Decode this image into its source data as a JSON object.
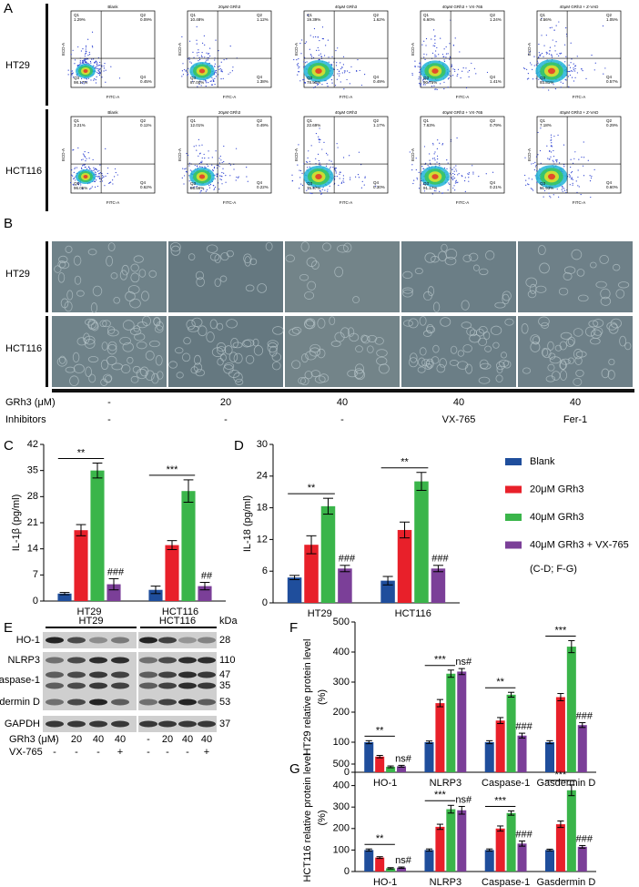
{
  "panel_labels": [
    "A",
    "B",
    "C",
    "D",
    "E",
    "F",
    "G"
  ],
  "flow": {
    "x_axis": "FITC-A",
    "y_axis": "ECD-A",
    "quadrants": [
      "Q1",
      "Q2",
      "Q3",
      "Q4"
    ],
    "rows": [
      {
        "label": "HT29",
        "plots": [
          {
            "title": "Blank",
            "q1": "1.29%",
            "q2": "0.09%",
            "q3": "98.17%",
            "q4": "0.45%"
          },
          {
            "title": "20μM GRh3",
            "q1": "10.48%",
            "q2": "1.12%",
            "q3": "87.00%",
            "q4": "1.38%"
          },
          {
            "title": "40μM GRh3",
            "q1": "19.39%",
            "q2": "1.62%",
            "q3": "78.50%",
            "q4": "0.49%"
          },
          {
            "title": "40μM GRh3 + VX-765",
            "q1": "6.60%",
            "q2": "1.24%",
            "q3": "90.75%",
            "q4": "1.41%"
          },
          {
            "title": "40μM GRh3 + Z-VAD",
            "q1": "4.56%",
            "q2": "1.05%",
            "q3": "93.81%",
            "q4": "0.57%"
          }
        ]
      },
      {
        "label": "HCT116",
        "plots": [
          {
            "title": "Blank",
            "q1": "3.21%",
            "q2": "0.11%",
            "q3": "96.05%",
            "q4": "0.62%"
          },
          {
            "title": "20μM GRh3",
            "q1": "12.01%",
            "q2": "0.49%",
            "q3": "86.56%",
            "q4": "0.22%"
          },
          {
            "title": "40μM GRh3",
            "q1": "22.69%",
            "q2": "1.17%",
            "q3": "75.97%",
            "q4": "0.30%"
          },
          {
            "title": "40μM GRh3 + VX-765",
            "q1": "7.63%",
            "q2": "0.79%",
            "q3": "91.17%",
            "q4": "0.21%"
          },
          {
            "title": "40μM GRh3 + Z-VAD",
            "q1": "7.18%",
            "q2": "0.29%",
            "q3": "91.93%",
            "q4": "0.60%"
          }
        ]
      }
    ]
  },
  "microscopy": {
    "rows": [
      "HT29",
      "HCT116"
    ]
  },
  "treatments": {
    "rows": [
      {
        "label": "GRh3 (μM)",
        "values": [
          "-",
          "20",
          "40",
          "40",
          "40"
        ]
      },
      {
        "label": "Inhibitors",
        "values": [
          "-",
          "-",
          "-",
          "VX-765",
          "Fer-1"
        ]
      }
    ]
  },
  "blot": {
    "cell_lines": [
      "HT29",
      "HCT116"
    ],
    "unit": "kDa",
    "rows": [
      {
        "name": "HO-1",
        "kda": [
          "28"
        ]
      },
      {
        "name": "NLRP3",
        "kda": [
          "110"
        ]
      },
      {
        "name": "Caspase-1",
        "kda": [
          "47",
          "35"
        ]
      },
      {
        "name": "Gasdermin D",
        "kda": [
          "53"
        ]
      },
      {
        "name": "GAPDH",
        "kda": [
          "37"
        ]
      }
    ],
    "conditions": [
      {
        "label": "GRh3 (μM)",
        "values": [
          "-",
          "20",
          "40",
          "40",
          "-",
          "20",
          "40",
          "40"
        ]
      },
      {
        "label": "VX-765",
        "values": [
          "-",
          "-",
          "-",
          "+",
          "-",
          "-",
          "-",
          "+"
        ]
      }
    ]
  },
  "chart_data": [
    {
      "type": "bar",
      "y_label": [
        "IL-1β (pg/ml)"
      ],
      "categories": [
        "HT29",
        "HCT116"
      ],
      "ylim": [
        0,
        42
      ],
      "yticks": [
        0,
        7,
        14,
        21,
        28,
        35,
        42
      ],
      "comparisons": [
        "**",
        "***"
      ],
      "series": [
        {
          "name": "Blank",
          "color": "#1f4e9c",
          "values": [
            2,
            3
          ],
          "errors": [
            0.3,
            1
          ],
          "annotations": [
            null,
            null
          ]
        },
        {
          "name": "20μM GRh3",
          "color": "#e8202a",
          "values": [
            19,
            15
          ],
          "errors": [
            1.5,
            1.2
          ],
          "annotations": [
            null,
            null
          ]
        },
        {
          "name": "40μM GRh3",
          "color": "#3ab54a",
          "values": [
            35,
            29.5
          ],
          "errors": [
            2,
            3
          ],
          "annotations": [
            null,
            null
          ]
        },
        {
          "name": "40μM GRh3 + VX-765",
          "color": "#7b3f98",
          "values": [
            4.5,
            4
          ],
          "errors": [
            1.5,
            1
          ],
          "annotations": [
            "###",
            "##"
          ]
        }
      ]
    },
    {
      "type": "bar",
      "y_label": [
        "IL-18 (pg/ml)"
      ],
      "categories": [
        "HT29",
        "HCT116"
      ],
      "ylim": [
        0,
        30
      ],
      "yticks": [
        0,
        6,
        12,
        18,
        24,
        30
      ],
      "comparisons": [
        "**",
        "**"
      ],
      "legend": "right",
      "legend_note": "(C-D; F-G)",
      "series": [
        {
          "name": "Blank",
          "color": "#1f4e9c",
          "values": [
            4.8,
            4.2
          ],
          "errors": [
            0.4,
            0.8
          ],
          "annotations": [
            null,
            null
          ]
        },
        {
          "name": "20μM GRh3",
          "color": "#e8202a",
          "values": [
            11,
            13.8
          ],
          "errors": [
            1.7,
            1.5
          ],
          "annotations": [
            null,
            null
          ]
        },
        {
          "name": "40μM GRh3",
          "color": "#3ab54a",
          "values": [
            18.3,
            23
          ],
          "errors": [
            1.5,
            1.7
          ],
          "annotations": [
            null,
            null
          ]
        },
        {
          "name": "40μM GRh3 + VX-765",
          "color": "#7b3f98",
          "values": [
            6.5,
            6.5
          ],
          "errors": [
            0.6,
            0.6
          ],
          "annotations": [
            "###",
            "###"
          ]
        }
      ]
    },
    {
      "type": "bar",
      "y_label": [
        "HT29 relative protein level",
        "(%)"
      ],
      "categories": [
        "HO-1",
        "NLRP3",
        "Caspase-1",
        "Gasdermin D"
      ],
      "ylim": [
        0,
        500
      ],
      "yticks": [
        0,
        100,
        200,
        300,
        400,
        500
      ],
      "comparisons": [
        "**",
        "***",
        "**",
        "***"
      ],
      "series": [
        {
          "name": "Blank",
          "color": "#1f4e9c",
          "values": [
            100,
            100,
            100,
            100
          ],
          "errors": [
            5,
            4,
            5,
            5
          ],
          "annotations": [
            null,
            null,
            null,
            null
          ]
        },
        {
          "name": "20μM GRh3",
          "color": "#e8202a",
          "values": [
            52,
            230,
            172,
            250
          ],
          "errors": [
            4,
            12,
            10,
            12
          ],
          "annotations": [
            null,
            null,
            null,
            null
          ]
        },
        {
          "name": "40μM GRh3",
          "color": "#3ab54a",
          "values": [
            18,
            328,
            258,
            418
          ],
          "errors": [
            3,
            12,
            8,
            20
          ],
          "annotations": [
            null,
            null,
            null,
            null
          ]
        },
        {
          "name": "40μM GRh3 + VX-765",
          "color": "#7b3f98",
          "values": [
            20,
            335,
            122,
            157
          ],
          "errors": [
            3,
            10,
            8,
            8
          ],
          "annotations": [
            "ns#",
            "ns#",
            "###",
            "###"
          ]
        }
      ]
    },
    {
      "type": "bar",
      "y_label": [
        "HCT116 relative protein level",
        "(%)"
      ],
      "categories": [
        "HO-1",
        "NLRP3",
        "Caspase-1",
        "Gasdermin D"
      ],
      "ylim": [
        0,
        500
      ],
      "yticks": [
        0,
        100,
        200,
        300,
        400,
        500
      ],
      "comparisons": [
        "**",
        "***",
        "***",
        "***"
      ],
      "series": [
        {
          "name": "Blank",
          "color": "#1f4e9c",
          "values": [
            100,
            100,
            100,
            100
          ],
          "errors": [
            5,
            5,
            5,
            4
          ],
          "annotations": [
            null,
            null,
            null,
            null
          ]
        },
        {
          "name": "20μM GRh3",
          "color": "#e8202a",
          "values": [
            65,
            208,
            200,
            220
          ],
          "errors": [
            4,
            12,
            12,
            15
          ],
          "annotations": [
            null,
            null,
            null,
            null
          ]
        },
        {
          "name": "40μM GRh3",
          "color": "#3ab54a",
          "values": [
            15,
            290,
            272,
            378
          ],
          "errors": [
            3,
            18,
            10,
            25
          ],
          "annotations": [
            null,
            null,
            null,
            null
          ]
        },
        {
          "name": "40μM GRh3 + VX-765",
          "color": "#7b3f98",
          "values": [
            18,
            285,
            130,
            115
          ],
          "errors": [
            3,
            18,
            12,
            6
          ],
          "annotations": [
            "ns#",
            "ns#",
            "###",
            "###"
          ]
        }
      ]
    }
  ]
}
